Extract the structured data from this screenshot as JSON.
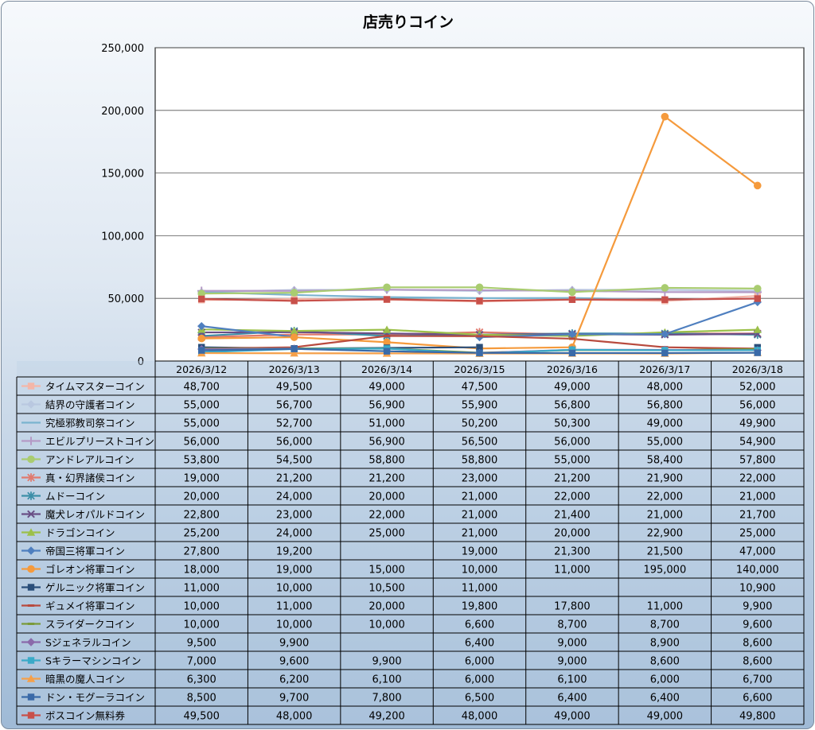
{
  "chart_data": {
    "type": "line",
    "title": "店売りコイン",
    "categories": [
      "2026/3/12",
      "2026/3/13",
      "2026/3/14",
      "2026/3/15",
      "2026/3/16",
      "2026/3/17",
      "2026/3/18"
    ],
    "ylim": [
      0,
      250000
    ],
    "yticks": [
      0,
      50000,
      100000,
      150000,
      200000,
      250000
    ],
    "ytick_labels": [
      "0",
      "50,000",
      "100,000",
      "150,000",
      "200,000",
      "250,000"
    ],
    "grid": true,
    "legend": "data-table",
    "series": [
      {
        "name": "タイムマスターコイン",
        "color": "#f4b6a8",
        "marker": "square",
        "values": [
          48700,
          49500,
          49000,
          47500,
          49000,
          48000,
          52000
        ],
        "labels": [
          "48,700",
          "49,500",
          "49,000",
          "47,500",
          "49,000",
          "48,000",
          "52,000"
        ]
      },
      {
        "name": "結界の守護者コイン",
        "color": "#b9c8e0",
        "marker": "diamond",
        "values": [
          55000,
          56700,
          56900,
          55900,
          56800,
          56800,
          56000
        ],
        "labels": [
          "55,000",
          "56,700",
          "56,900",
          "55,900",
          "56,800",
          "56,800",
          "56,000"
        ]
      },
      {
        "name": "究極邪教司祭コイン",
        "color": "#7ab3cf",
        "marker": "none",
        "values": [
          55000,
          52700,
          51000,
          50200,
          50300,
          49000,
          49900
        ],
        "labels": [
          "55,000",
          "52,700",
          "51,000",
          "50,200",
          "50,300",
          "49,000",
          "49,900"
        ]
      },
      {
        "name": "エビルプリーストコイン",
        "color": "#b49ac6",
        "marker": "plus",
        "values": [
          56000,
          56000,
          56900,
          56500,
          56000,
          55000,
          54900
        ],
        "labels": [
          "56,000",
          "56,000",
          "56,900",
          "56,500",
          "56,000",
          "55,000",
          "54,900"
        ]
      },
      {
        "name": "アンドレアルコイン",
        "color": "#a9cc70",
        "marker": "circle",
        "values": [
          53800,
          54500,
          58800,
          58800,
          55000,
          58400,
          57800
        ],
        "labels": [
          "53,800",
          "54,500",
          "58,800",
          "58,800",
          "55,000",
          "58,400",
          "57,800"
        ]
      },
      {
        "name": "真・幻界諸侯コイン",
        "color": "#e07a6e",
        "marker": "star",
        "values": [
          19000,
          21200,
          21200,
          23000,
          21200,
          21900,
          22000
        ],
        "labels": [
          "19,000",
          "21,200",
          "21,200",
          "23,000",
          "21,200",
          "21,900",
          "22,000"
        ]
      },
      {
        "name": "ムドーコイン",
        "color": "#3d8fa8",
        "marker": "star",
        "values": [
          20000,
          24000,
          20000,
          21000,
          22000,
          22000,
          21000
        ],
        "labels": [
          "20,000",
          "24,000",
          "20,000",
          "21,000",
          "22,000",
          "22,000",
          "21,000"
        ]
      },
      {
        "name": "魔犬レオパルドコイン",
        "color": "#6a4f86",
        "marker": "x",
        "values": [
          22800,
          23000,
          22000,
          21000,
          21400,
          21000,
          21700
        ],
        "labels": [
          "22,800",
          "23,000",
          "22,000",
          "21,000",
          "21,400",
          "21,000",
          "21,700"
        ]
      },
      {
        "name": "ドラゴンコイン",
        "color": "#9cc04a",
        "marker": "triangle",
        "values": [
          25200,
          24000,
          25000,
          21000,
          20000,
          22900,
          25000
        ],
        "labels": [
          "25,200",
          "24,000",
          "25,000",
          "21,000",
          "20,000",
          "22,900",
          "25,000"
        ]
      },
      {
        "name": "帝国三将軍コイン",
        "color": "#4f7fbf",
        "marker": "diamond",
        "values": [
          27800,
          19200,
          null,
          19000,
          21300,
          21500,
          47000
        ],
        "labels": [
          "27,800",
          "19,200",
          "",
          "19,000",
          "21,300",
          "21,500",
          "47,000"
        ]
      },
      {
        "name": "ゴレオン将軍コイン",
        "color": "#f59a3c",
        "marker": "circle",
        "values": [
          18000,
          19000,
          15000,
          10000,
          11000,
          195000,
          140000
        ],
        "labels": [
          "18,000",
          "19,000",
          "15,000",
          "10,000",
          "11,000",
          "195,000",
          "140,000"
        ]
      },
      {
        "name": "ゲルニック将軍コイン",
        "color": "#2a4e7a",
        "marker": "square",
        "values": [
          11000,
          10000,
          10500,
          11000,
          null,
          null,
          10900
        ],
        "labels": [
          "11,000",
          "10,000",
          "10,500",
          "11,000",
          "",
          "",
          "10,900"
        ]
      },
      {
        "name": "ギュメイ将軍コイン",
        "color": "#b84a3e",
        "marker": "dash",
        "values": [
          10000,
          11000,
          20000,
          19800,
          17800,
          11000,
          9900
        ],
        "labels": [
          "10,000",
          "11,000",
          "20,000",
          "19,800",
          "17,800",
          "11,000",
          "9,900"
        ]
      },
      {
        "name": "スライダークコイン",
        "color": "#7a9a3a",
        "marker": "dash",
        "values": [
          10000,
          10000,
          10000,
          6600,
          8700,
          8700,
          9600
        ],
        "labels": [
          "10,000",
          "10,000",
          "10,000",
          "6,600",
          "8,700",
          "8,700",
          "9,600"
        ]
      },
      {
        "name": "Sジェネラルコイン",
        "color": "#8a6aaa",
        "marker": "diamond",
        "values": [
          9500,
          9900,
          null,
          6400,
          9000,
          8900,
          8600
        ],
        "labels": [
          "9,500",
          "9,900",
          "",
          "6,400",
          "9,000",
          "8,900",
          "8,600"
        ]
      },
      {
        "name": "Sキラーマシンコイン",
        "color": "#3aaac8",
        "marker": "square",
        "values": [
          7000,
          9600,
          9900,
          6000,
          9000,
          8600,
          8600
        ],
        "labels": [
          "7,000",
          "9,600",
          "9,900",
          "6,000",
          "9,000",
          "8,600",
          "8,600"
        ]
      },
      {
        "name": "暗黒の魔人コイン",
        "color": "#f5a04a",
        "marker": "triangle",
        "values": [
          6300,
          6200,
          6100,
          6000,
          6100,
          6000,
          6700
        ],
        "labels": [
          "6,300",
          "6,200",
          "6,100",
          "6,000",
          "6,100",
          "6,000",
          "6,700"
        ]
      },
      {
        "name": "ドン・モグーラコイン",
        "color": "#3a6aa8",
        "marker": "square",
        "values": [
          8500,
          9700,
          7800,
          6500,
          6400,
          6400,
          6600
        ],
        "labels": [
          "8,500",
          "9,700",
          "7,800",
          "6,500",
          "6,400",
          "6,400",
          "6,600"
        ]
      },
      {
        "name": "ボスコイン無料券",
        "color": "#c8504a",
        "marker": "square",
        "values": [
          49500,
          48000,
          49200,
          48000,
          49000,
          49000,
          49800
        ],
        "labels": [
          "49,500",
          "48,000",
          "49,200",
          "48,000",
          "49,000",
          "49,000",
          "49,800"
        ]
      }
    ]
  }
}
